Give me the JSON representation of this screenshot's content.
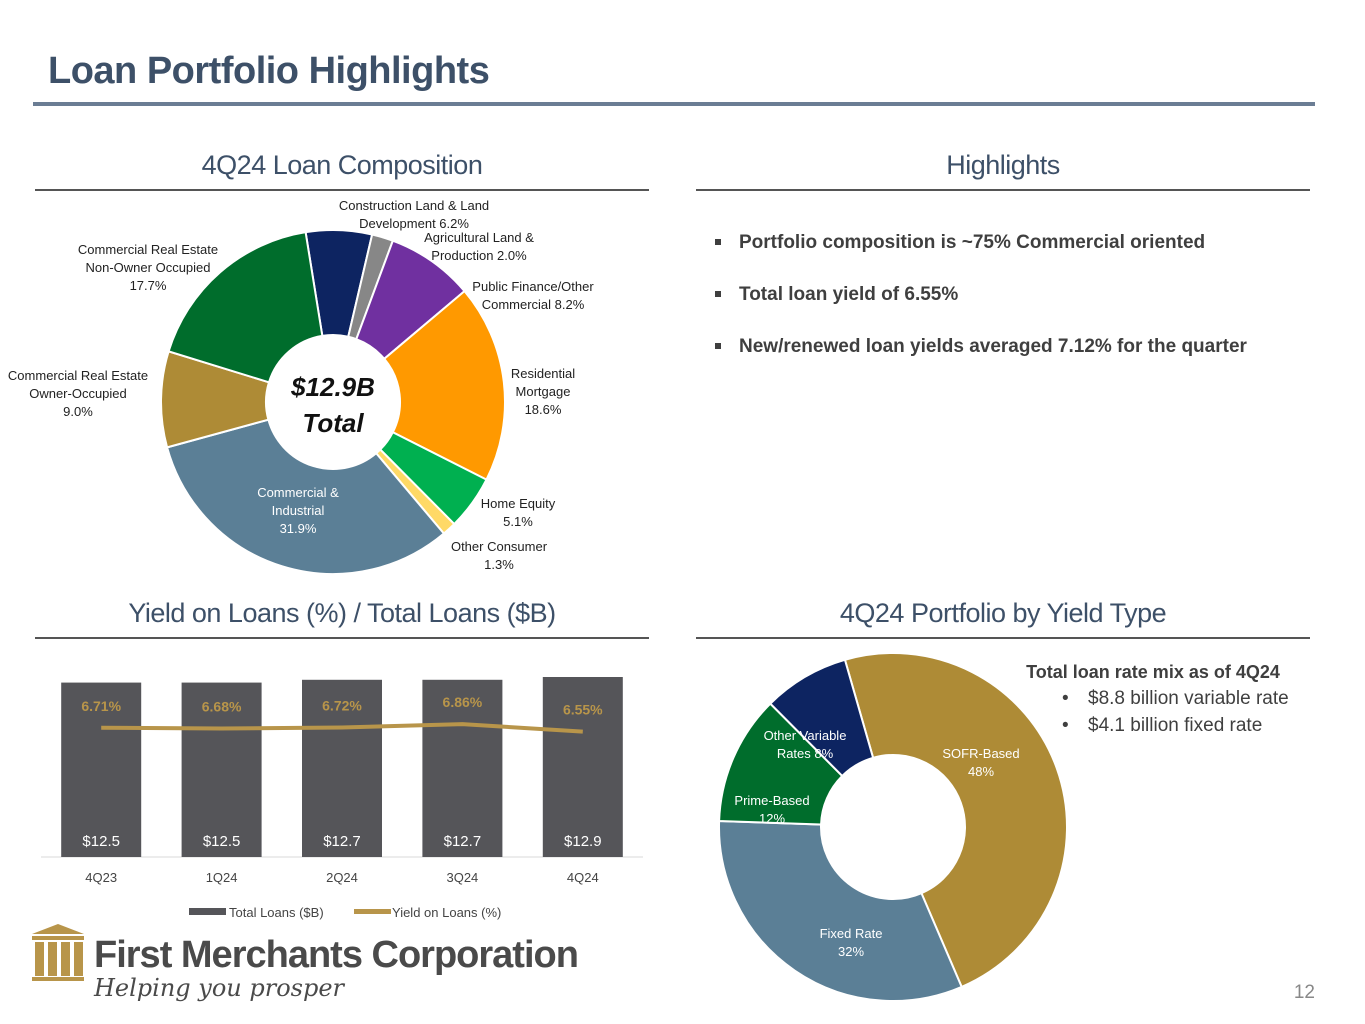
{
  "page": {
    "title": "Loan Portfolio Highlights",
    "page_number": "12"
  },
  "sections": {
    "composition_title": "4Q24 Loan Composition",
    "highlights_title": "Highlights",
    "yield_title": "Yield on Loans (%) / Total Loans ($B)",
    "yield_type_title": "4Q24 Portfolio by Yield Type"
  },
  "highlights": [
    "Portfolio composition is ~75% Commercial oriented",
    "Total loan yield of 6.55%",
    "New/renewed loan yields averaged 7.12% for the quarter"
  ],
  "rate_mix": {
    "title": "Total loan rate mix as of 4Q24",
    "items": [
      "$8.8 billion variable rate",
      "$4.1 billion fixed rate"
    ]
  },
  "logo": {
    "name": "First Merchants Corporation",
    "tagline": "Helping you prosper",
    "icon": "building-columns-icon"
  },
  "chart_data": [
    {
      "type": "pie",
      "title": "4Q24 Loan Composition",
      "center_label": [
        "$12.9B",
        "Total"
      ],
      "slices": [
        {
          "label": [
            "Construction Land & Land",
            "Development 6.2%"
          ],
          "value": 6.2,
          "color": "#0d2461"
        },
        {
          "label": [
            "Agricultural Land &",
            "Production 2.0%"
          ],
          "value": 2.0,
          "color": "#878787"
        },
        {
          "label": [
            "Public Finance/Other",
            "Commercial 8.2%"
          ],
          "value": 8.2,
          "color": "#7030a0"
        },
        {
          "label": [
            "Residential",
            "Mortgage",
            "18.6%"
          ],
          "value": 18.6,
          "color": "#ff9900"
        },
        {
          "label": [
            "Home Equity",
            "5.1%"
          ],
          "value": 5.1,
          "color": "#00b050"
        },
        {
          "label": [
            "Other Consumer",
            "1.3%"
          ],
          "value": 1.3,
          "color": "#ffd966"
        },
        {
          "label": [
            "Commercial &",
            "Industrial",
            "31.9%"
          ],
          "value": 31.9,
          "color": "#5b7f96"
        },
        {
          "label": [
            "Commercial Real Estate",
            "Owner-Occupied",
            "9.0%"
          ],
          "value": 9.0,
          "color": "#ae8b36"
        },
        {
          "label": [
            "Commercial Real Estate",
            "Non-Owner Occupied",
            "17.7%"
          ],
          "value": 17.7,
          "color": "#006d2c"
        }
      ]
    },
    {
      "type": "bar",
      "title": "Yield on Loans (%) / Total Loans ($B)",
      "categories": [
        "4Q23",
        "1Q24",
        "2Q24",
        "3Q24",
        "4Q24"
      ],
      "series": [
        {
          "name": "Total Loans ($B)",
          "type": "bar",
          "values": [
            12.5,
            12.5,
            12.7,
            12.7,
            12.9
          ],
          "labels": [
            "$12.5",
            "$12.5",
            "$12.7",
            "$12.7",
            "$12.9"
          ],
          "color": "#555559"
        },
        {
          "name": "Yield on Loans (%)",
          "type": "line",
          "values": [
            6.71,
            6.68,
            6.72,
            6.86,
            6.55
          ],
          "labels": [
            "6.71%",
            "6.68%",
            "6.72%",
            "6.86%",
            "6.55%"
          ],
          "color": "#b8954a"
        }
      ],
      "legend": "bottom"
    },
    {
      "type": "pie",
      "title": "4Q24 Portfolio by Yield Type",
      "slices": [
        {
          "label": [
            "SOFR-Based",
            "48%"
          ],
          "value": 48,
          "color": "#ae8b36"
        },
        {
          "label": [
            "Fixed Rate",
            "32%"
          ],
          "value": 32,
          "color": "#5b7f96"
        },
        {
          "label": [
            "Prime-Based",
            "12%"
          ],
          "value": 12,
          "color": "#006d2c"
        },
        {
          "label": [
            "Other Variable",
            "Rates 8%"
          ],
          "value": 8,
          "color": "#0d2461"
        }
      ]
    }
  ]
}
